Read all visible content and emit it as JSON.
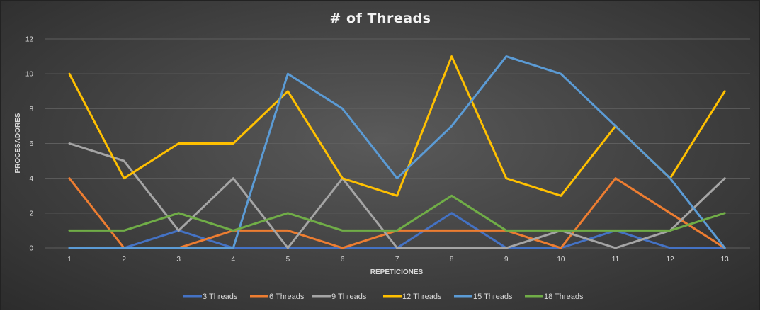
{
  "chart_data": {
    "type": "line",
    "title": "# of Threads",
    "xlabel": "REPETICIONES",
    "ylabel": "PROCESADORES",
    "categories": [
      "1",
      "2",
      "3",
      "4",
      "5",
      "6",
      "7",
      "8",
      "9",
      "10",
      "11",
      "12",
      "13"
    ],
    "ylim": [
      0,
      12
    ],
    "yticks": [
      0,
      2,
      4,
      6,
      8,
      10,
      12
    ],
    "grid": true,
    "legend_position": "bottom",
    "series": [
      {
        "name": "3 Threads",
        "color": "#4472c4",
        "values": [
          0,
          0,
          1,
          0,
          0,
          0,
          0,
          2,
          0,
          0,
          1,
          0,
          0
        ]
      },
      {
        "name": "6 Threads",
        "color": "#ed7d31",
        "values": [
          4,
          0,
          0,
          1,
          1,
          0,
          1,
          1,
          1,
          0,
          4,
          2,
          0
        ]
      },
      {
        "name": "9 Threads",
        "color": "#a5a5a5",
        "values": [
          6,
          5,
          1,
          4,
          0,
          4,
          0,
          0,
          0,
          1,
          0,
          1,
          4
        ]
      },
      {
        "name": "12 Threads",
        "color": "#ffc000",
        "values": [
          10,
          4,
          6,
          6,
          9,
          4,
          3,
          11,
          4,
          3,
          7,
          4,
          9
        ]
      },
      {
        "name": "15 Threads",
        "color": "#5b9bd5",
        "values": [
          0,
          0,
          0,
          0,
          10,
          8,
          4,
          7,
          11,
          10,
          7,
          4,
          0
        ]
      },
      {
        "name": "18 Threads",
        "color": "#70ad47",
        "values": [
          1,
          1,
          2,
          1,
          2,
          1,
          1,
          3,
          1,
          1,
          1,
          1,
          2
        ]
      }
    ]
  }
}
